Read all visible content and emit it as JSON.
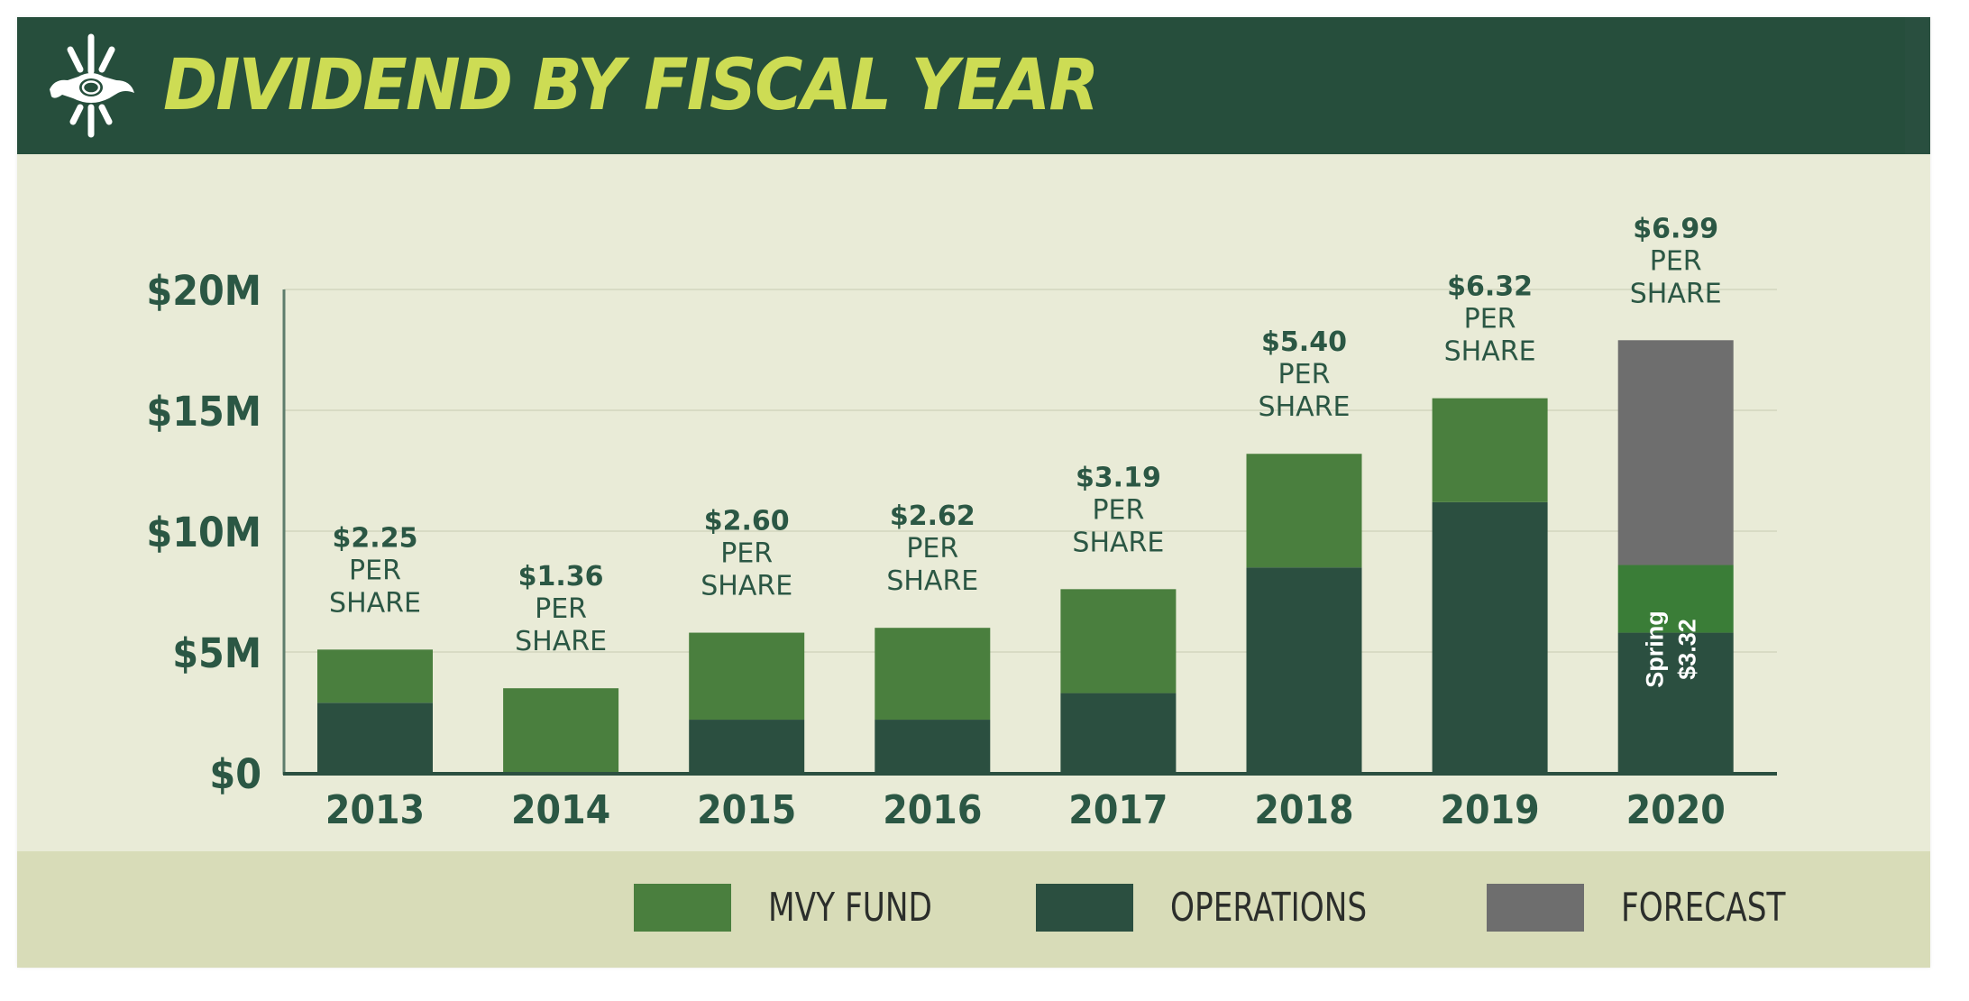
{
  "header": {
    "title": "DIVIDEND BY FISCAL YEAR",
    "logo_icon": "thunderbird-sun-icon"
  },
  "colors": {
    "header_bg": "#264e3c",
    "title": "#cddc54",
    "body_bg": "#e9ebd7",
    "legend_bg": "#d8dcb8",
    "mvy_fund": "#4a7f3e",
    "mvy_fund_2020": "#3a7d37",
    "operations": "#2b4f40",
    "forecast": "#6e6e6e",
    "text": "#2b5744"
  },
  "legend": [
    {
      "label": "MVY FUND",
      "key": "mvy_fund"
    },
    {
      "label": "OPERATIONS",
      "key": "operations"
    },
    {
      "label": "FORECAST",
      "key": "forecast"
    }
  ],
  "chart_data": {
    "type": "bar",
    "stacked": true,
    "title": "DIVIDEND BY FISCAL YEAR",
    "xlabel": "",
    "ylabel": "",
    "ylim": [
      0,
      20
    ],
    "y_unit": "$M",
    "yticks": [
      {
        "value": 0,
        "label": "$0"
      },
      {
        "value": 5,
        "label": "$5M"
      },
      {
        "value": 10,
        "label": "$10M"
      },
      {
        "value": 15,
        "label": "$15M"
      },
      {
        "value": 20,
        "label": "$20M"
      }
    ],
    "grid": true,
    "legend_position": "bottom-right",
    "categories": [
      "2013",
      "2014",
      "2015",
      "2016",
      "2017",
      "2018",
      "2019",
      "2020"
    ],
    "series": [
      {
        "name": "OPERATIONS",
        "key": "operations",
        "values": [
          2.9,
          0,
          2.2,
          2.2,
          3.3,
          8.5,
          11.2,
          5.8
        ]
      },
      {
        "name": "MVY FUND",
        "key": "mvy_fund",
        "values": [
          2.2,
          3.5,
          3.6,
          3.8,
          4.3,
          4.7,
          4.3,
          2.8
        ]
      },
      {
        "name": "FORECAST",
        "key": "forecast",
        "values": [
          0,
          0,
          0,
          0,
          0,
          0,
          0,
          9.3
        ]
      }
    ],
    "annotations": [
      {
        "category": "2013",
        "value": "$2.25",
        "line2": "PER",
        "line3": "SHARE"
      },
      {
        "category": "2014",
        "value": "$1.36",
        "line2": "PER",
        "line3": "SHARE"
      },
      {
        "category": "2015",
        "value": "$2.60",
        "line2": "PER",
        "line3": "SHARE"
      },
      {
        "category": "2016",
        "value": "$2.62",
        "line2": "PER",
        "line3": "SHARE"
      },
      {
        "category": "2017",
        "value": "$3.19",
        "line2": "PER",
        "line3": "SHARE"
      },
      {
        "category": "2018",
        "value": "$5.40",
        "line2": "PER",
        "line3": "SHARE"
      },
      {
        "category": "2019",
        "value": "$6.32",
        "line2": "PER",
        "line3": "SHARE"
      },
      {
        "category": "2020",
        "value": "$6.99",
        "line2": "PER",
        "line3": "SHARE"
      }
    ],
    "bar_note": {
      "category": "2020",
      "line1": "Spring",
      "line2": "$3.32"
    }
  }
}
